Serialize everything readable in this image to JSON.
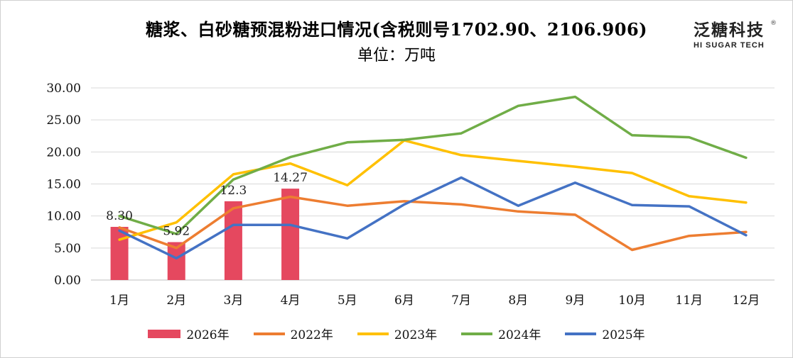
{
  "title": "糖浆、白砂糖预混粉进口情况(含税则号1702.90、2106.906)",
  "subtitle": "单位：万吨",
  "logo": {
    "cn": "泛糖科技",
    "en": "HI SUGAR TECH",
    "reg": "®"
  },
  "chart_data": {
    "type": "bar+line",
    "categories": [
      "1月",
      "2月",
      "3月",
      "4月",
      "5月",
      "6月",
      "7月",
      "8月",
      "9月",
      "10月",
      "11月",
      "12月"
    ],
    "ylim": [
      0,
      30
    ],
    "yticks": [
      "0.00",
      "5.00",
      "10.00",
      "15.00",
      "20.00",
      "25.00",
      "30.00"
    ],
    "grid": true,
    "legend_position": "bottom",
    "bar_series": {
      "name": "2026年",
      "color": "#e5485f",
      "values": [
        8.3,
        5.92,
        12.3,
        14.27
      ],
      "data_labels": [
        "8.30",
        "5.92",
        "12.3",
        "14.27"
      ]
    },
    "line_series": [
      {
        "name": "2022年",
        "color": "#ed7d31",
        "values": [
          8.2,
          5.0,
          11.2,
          13.0,
          11.6,
          12.3,
          11.8,
          10.7,
          10.2,
          4.7,
          6.9,
          7.5
        ]
      },
      {
        "name": "2023年",
        "color": "#ffc000",
        "values": [
          6.3,
          9.0,
          16.5,
          18.2,
          14.8,
          21.8,
          19.5,
          18.6,
          17.7,
          16.7,
          13.1,
          12.1
        ]
      },
      {
        "name": "2024年",
        "color": "#70ad47",
        "values": [
          10.0,
          7.2,
          15.7,
          19.2,
          21.5,
          21.9,
          22.9,
          27.2,
          28.6,
          22.6,
          22.3,
          19.1
        ]
      },
      {
        "name": "2025年",
        "color": "#4472c4",
        "values": [
          7.7,
          3.4,
          8.6,
          8.6,
          6.5,
          11.8,
          16.0,
          11.6,
          15.2,
          11.7,
          11.5,
          7.0
        ]
      }
    ]
  },
  "legend": [
    {
      "label": "2026年",
      "kind": "bar",
      "color": "#e5485f"
    },
    {
      "label": "2022年",
      "kind": "line",
      "color": "#ed7d31"
    },
    {
      "label": "2023年",
      "kind": "line",
      "color": "#ffc000"
    },
    {
      "label": "2024年",
      "kind": "line",
      "color": "#70ad47"
    },
    {
      "label": "2025年",
      "kind": "line",
      "color": "#4472c4"
    }
  ]
}
